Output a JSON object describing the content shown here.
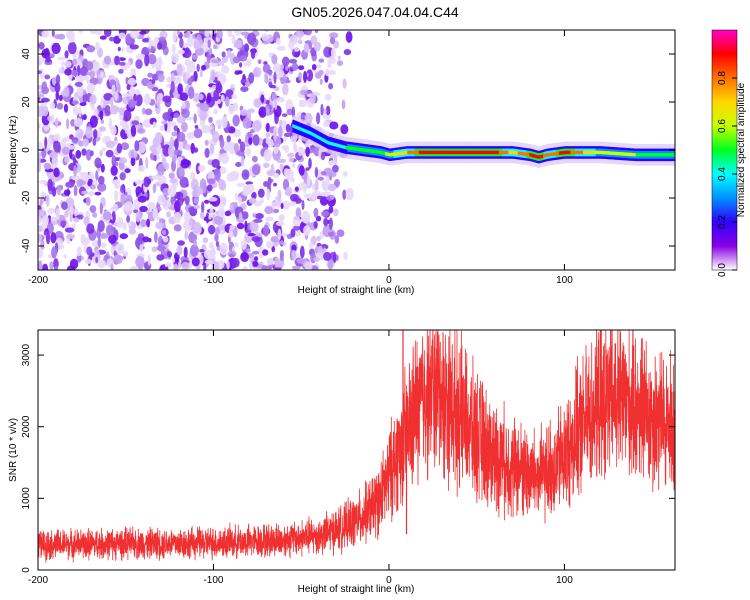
{
  "title": "GN05.2026.047.04.04.C44",
  "chart_data": [
    {
      "type": "heatmap",
      "xlabel": "Height of straight line (km)",
      "ylabel": "Frequency (Hz)",
      "xlim": [
        -200,
        163
      ],
      "ylim": [
        -50,
        50
      ],
      "xticks": [
        -200,
        -100,
        0,
        100
      ],
      "yticks": [
        -40,
        -20,
        0,
        20,
        40
      ],
      "colorbar": {
        "label": "Normalized spectral amplitude",
        "range": [
          0,
          1
        ],
        "ticks": [
          "0.0",
          "0.2",
          "0.4",
          "0.6",
          "0.8"
        ],
        "colors": [
          "#ffffff",
          "#8a00e6",
          "#2f00ff",
          "#0090ff",
          "#00ffff",
          "#00ff20",
          "#c8ff00",
          "#ffd700",
          "#ff7000",
          "#ff0000",
          "#ff00cc"
        ]
      },
      "ridge": {
        "x": [
          -55,
          -45,
          -35,
          -25,
          -15,
          -5,
          0,
          10,
          20,
          40,
          60,
          70,
          80,
          85,
          90,
          100,
          120,
          140,
          163
        ],
        "freq": [
          10,
          7,
          3,
          1,
          0,
          -1,
          -2,
          -1,
          -1,
          -1,
          -1,
          -1,
          -2,
          -3,
          -2,
          -1,
          -1,
          -2,
          -2
        ],
        "amplitude": [
          0.35,
          0.4,
          0.4,
          0.45,
          0.5,
          0.5,
          0.6,
          0.75,
          0.9,
          0.95,
          0.9,
          0.7,
          0.85,
          0.95,
          0.75,
          0.9,
          0.6,
          0.55,
          0.5
        ]
      },
      "noise_region_x": [
        -200,
        -30
      ]
    },
    {
      "type": "line",
      "xlabel": "Height of straight line (km)",
      "ylabel": "SNR (10 * v/v)",
      "xlim": [
        -200,
        163
      ],
      "ylim": [
        0,
        3350
      ],
      "xticks": [
        -200,
        -100,
        0,
        100
      ],
      "yticks": [
        0,
        1000,
        2000,
        3000
      ],
      "color": "#f03030",
      "envelope": {
        "x": [
          -200,
          -150,
          -100,
          -60,
          -40,
          -25,
          -15,
          -5,
          0,
          5,
          10,
          15,
          20,
          25,
          30,
          40,
          50,
          60,
          70,
          80,
          85,
          90,
          100,
          110,
          120,
          130,
          140,
          150,
          163
        ],
        "y": [
          350,
          370,
          380,
          420,
          480,
          600,
          750,
          1000,
          1300,
          1650,
          1900,
          2200,
          2450,
          2500,
          2450,
          2200,
          1850,
          1600,
          1450,
          1350,
          1300,
          1350,
          1600,
          2000,
          2350,
          2400,
          2300,
          2150,
          2000
        ]
      },
      "spikes": [
        {
          "x": 8,
          "y": 3350
        },
        {
          "x": 10,
          "y": 500
        }
      ]
    }
  ]
}
